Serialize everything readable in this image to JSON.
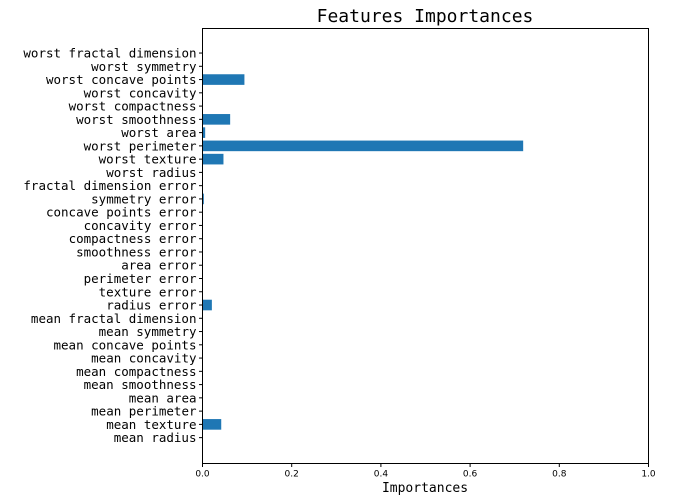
{
  "chart_data": {
    "type": "bar",
    "orientation": "horizontal",
    "title": "Features Importances",
    "xlabel": "Importances",
    "ylabel": "",
    "xlim": [
      0,
      1.0
    ],
    "xticks": [
      "0.0",
      "0.2",
      "0.4",
      "0.6",
      "0.8",
      "1.0"
    ],
    "grid": false,
    "bar_color": "#1f77b4",
    "categories": [
      "mean radius",
      "mean texture",
      "mean perimeter",
      "mean area",
      "mean smoothness",
      "mean compactness",
      "mean concavity",
      "mean concave points",
      "mean symmetry",
      "mean fractal dimension",
      "radius error",
      "texture error",
      "perimeter error",
      "area error",
      "smoothness error",
      "compactness error",
      "concavity error",
      "concave points error",
      "symmetry error",
      "fractal dimension error",
      "worst radius",
      "worst texture",
      "worst perimeter",
      "worst area",
      "worst smoothness",
      "worst compactness",
      "worst concavity",
      "worst concave points",
      "worst symmetry",
      "worst fractal dimension"
    ],
    "values": [
      0,
      0.042,
      0,
      0,
      0,
      0,
      0,
      0,
      0,
      0,
      0.021,
      0,
      0,
      0,
      0,
      0,
      0,
      0,
      0.003,
      0,
      0,
      0.047,
      0.719,
      0.006,
      0.062,
      0,
      0,
      0.094,
      0,
      0
    ]
  }
}
